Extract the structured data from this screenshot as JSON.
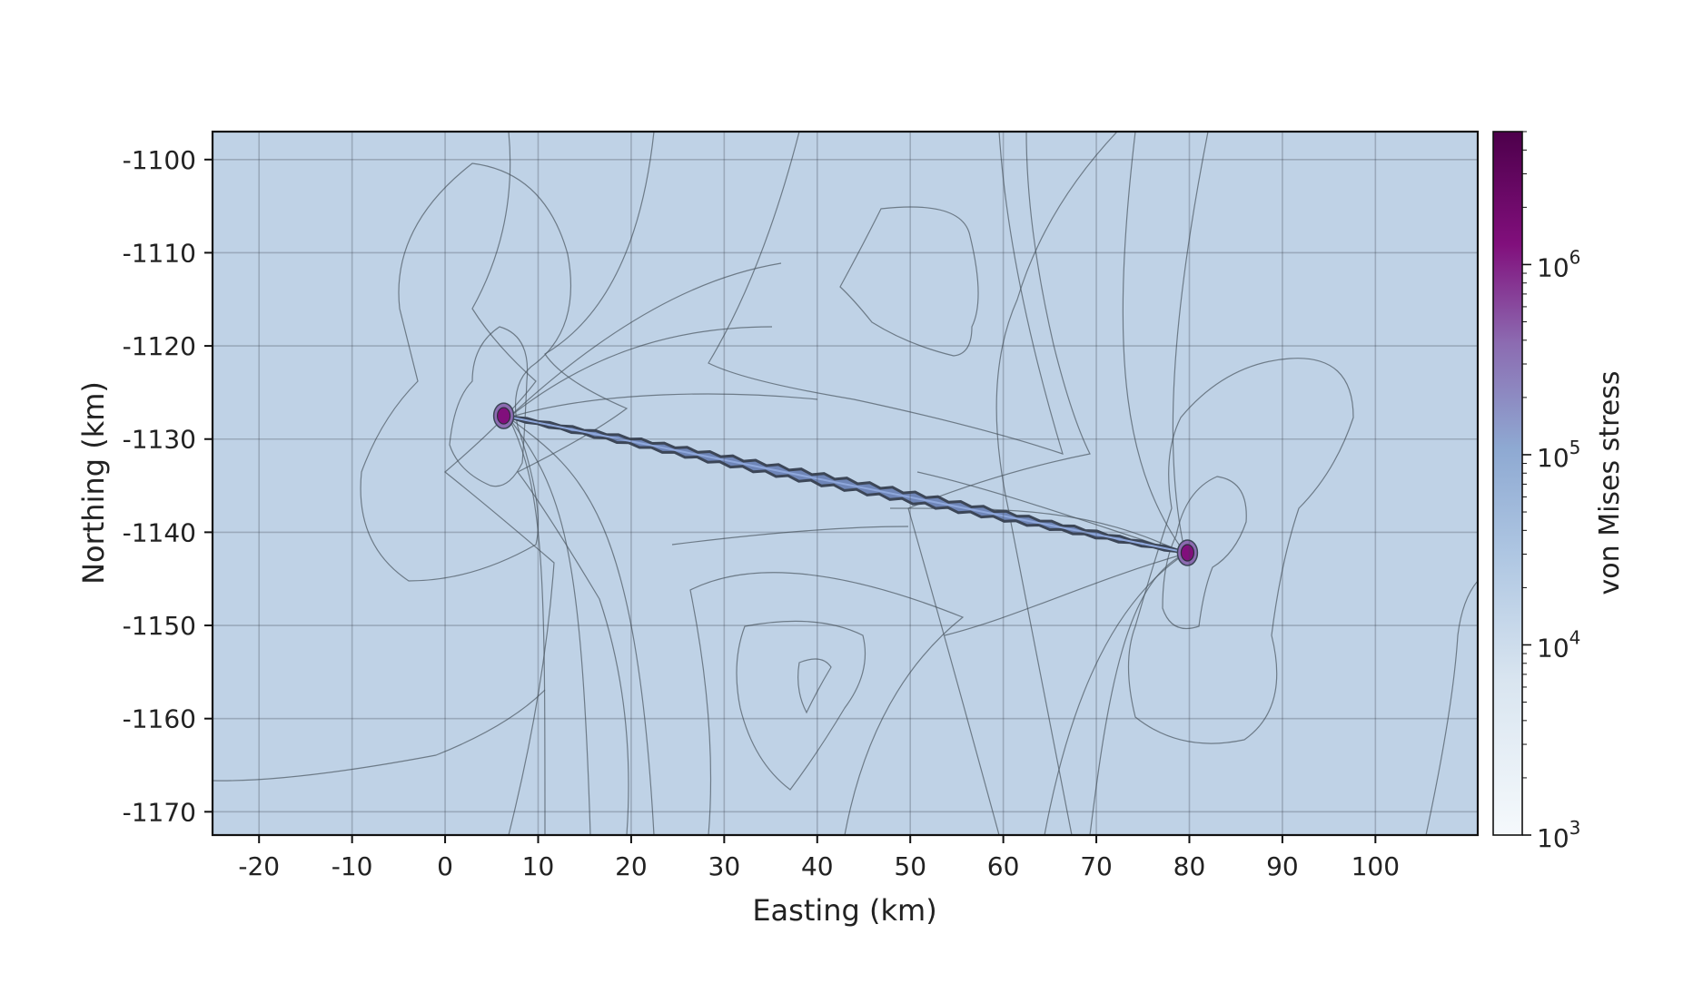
{
  "chart_data": {
    "type": "heatmap",
    "title": "",
    "xlabel": "Easting (km)",
    "ylabel": "Northing (km)",
    "xlim": [
      -25,
      111
    ],
    "ylim": [
      -1172.5,
      -1097
    ],
    "x_ticks": [
      -20,
      -10,
      0,
      10,
      20,
      30,
      40,
      50,
      60,
      70,
      80,
      90,
      100
    ],
    "y_ticks": [
      -1100,
      -1110,
      -1120,
      -1130,
      -1140,
      -1150,
      -1160,
      -1170
    ],
    "grid": true,
    "fault_trace": {
      "start": [
        6.3,
        -1127.5
      ],
      "end": [
        79.8,
        -1142.2
      ]
    },
    "stress_concentrations": [
      {
        "x": 6.3,
        "y": -1127.5
      },
      {
        "x": 79.8,
        "y": -1142.2
      }
    ],
    "colorbar": {
      "label": "von Mises stress",
      "scale": "log",
      "range": [
        1000,
        5000000
      ],
      "ticks": [
        {
          "value": 1000,
          "label": "10",
          "exp": "3"
        },
        {
          "value": 10000,
          "label": "10",
          "exp": "4"
        },
        {
          "value": 100000,
          "label": "10",
          "exp": "5"
        },
        {
          "value": 1000000,
          "label": "10",
          "exp": "6"
        }
      ],
      "colors": [
        "#f5f9fc",
        "#c4d5e8",
        "#8ea9d2",
        "#8c6bb1",
        "#810f7c",
        "#4d004b"
      ]
    }
  }
}
